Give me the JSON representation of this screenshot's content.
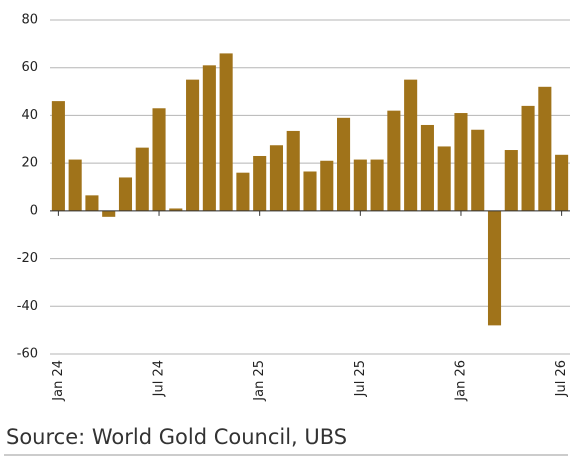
{
  "chart_data": {
    "type": "bar",
    "categories": [
      "Jan 24",
      null,
      null,
      null,
      null,
      null,
      "Jul 24",
      null,
      null,
      null,
      null,
      null,
      "Jan 25",
      null,
      null,
      null,
      null,
      null,
      "Jul 25",
      null,
      null,
      null,
      null,
      null,
      "Jan 26",
      null,
      null,
      null,
      null,
      null,
      "Jul 26"
    ],
    "values": [
      46,
      21.5,
      6.5,
      -2.5,
      14,
      26.5,
      43,
      1,
      55,
      61,
      66,
      16,
      23,
      27.5,
      33.5,
      16.5,
      21,
      39,
      21.5,
      21.5,
      42,
      55,
      36,
      27,
      41,
      34,
      -48,
      25.5,
      44,
      52,
      23.5
    ],
    "color": "#a0731a",
    "ylim": [
      -60,
      80
    ],
    "yticks": [
      -60,
      -40,
      -20,
      0,
      20,
      40,
      60,
      80
    ],
    "grid": true,
    "source": "Source: World Gold Council, UBS"
  }
}
